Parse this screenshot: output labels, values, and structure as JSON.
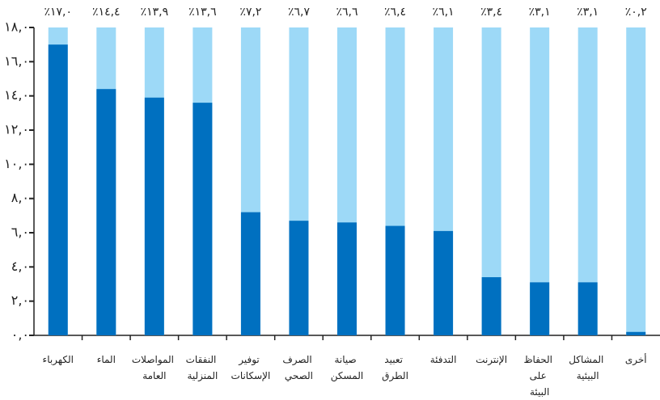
{
  "chart_data": {
    "type": "bar",
    "categories": [
      "الكهرباء",
      "الماء",
      "المواصلات العامة",
      "النفقات المنزلية",
      "توفير الإسكانات",
      "الصرف الصحي",
      "صيانة المسكن",
      "تعبيد الطرق",
      "التدفئة",
      "الإنترنت",
      "الحفاظ على البيئة",
      "المشاكل البيئية",
      "أخرى"
    ],
    "values": [
      17.0,
      14.4,
      13.9,
      13.6,
      7.2,
      6.7,
      6.6,
      6.4,
      6.1,
      3.4,
      3.1,
      3.1,
      0.2
    ],
    "value_labels": [
      "٪١٧,٠",
      "٪١٤,٤",
      "٪١٣,٩",
      "٪١٣,٦",
      "٪٧,٢",
      "٪٦,٧",
      "٪٦,٦",
      "٪٦,٤",
      "٪٦,١",
      "٪٣,٤",
      "٪٣,١",
      "٪٣,١",
      "٪٠,٢"
    ],
    "color": "#0070c0",
    "background_color": "#9dd9f7",
    "ylim": [
      0,
      18
    ],
    "yticks": [
      {
        "value": 0,
        "label": "٠,٠"
      },
      {
        "value": 2,
        "label": "٢,٠"
      },
      {
        "value": 4,
        "label": "٤,٠"
      },
      {
        "value": 6,
        "label": "٦,٠"
      },
      {
        "value": 8,
        "label": "٨,٠"
      },
      {
        "value": 10,
        "label": "١٠,٠"
      },
      {
        "value": 12,
        "label": "١٢,٠"
      },
      {
        "value": 14,
        "label": "١٤,٠"
      },
      {
        "value": 16,
        "label": "١٦,٠"
      },
      {
        "value": 18,
        "label": "١٨,٠"
      }
    ]
  }
}
